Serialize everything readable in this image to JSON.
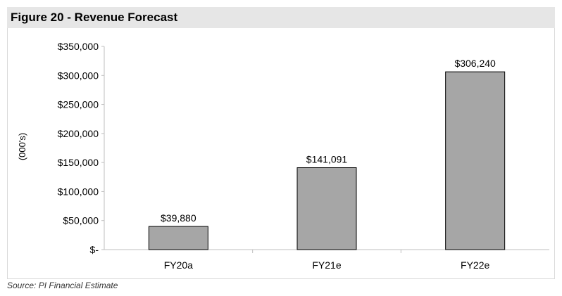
{
  "figure_title": "Figure 20 - Revenue Forecast",
  "source": "Source: PI Financial Estimate",
  "colors": {
    "bar_fill": "#a6a6a6",
    "bar_stroke": "#000000",
    "title_bg": "#e6e6e6"
  },
  "chart_data": {
    "type": "bar",
    "title": "",
    "xlabel": "",
    "ylabel": "(000's)",
    "categories": [
      "FY20a",
      "FY21e",
      "FY22e"
    ],
    "values": [
      39880,
      141091,
      306240
    ],
    "data_labels": [
      "$39,880",
      "$141,091",
      "$306,240"
    ],
    "ylim": [
      0,
      350000
    ],
    "yticks": [
      0,
      50000,
      100000,
      150000,
      200000,
      250000,
      300000,
      350000
    ],
    "ytick_labels": [
      "$-",
      "$50,000",
      "$100,000",
      "$150,000",
      "$200,000",
      "$250,000",
      "$300,000",
      "$350,000"
    ],
    "grid": false,
    "legend": "none"
  }
}
